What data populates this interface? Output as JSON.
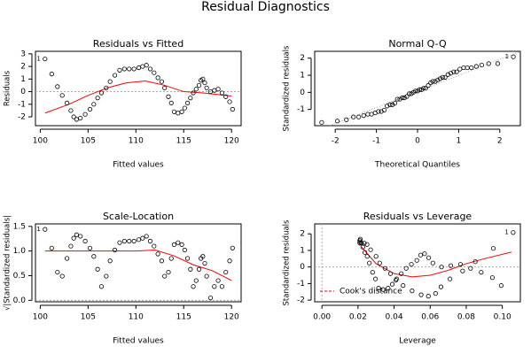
{
  "title": "Residual Diagnostics",
  "chart_data": [
    {
      "type": "scatter",
      "title": "Residuals vs Fitted",
      "xlabel": "Fitted values",
      "ylabel": "Residuals",
      "xlim": [
        99.5,
        121
      ],
      "ylim": [
        -2.7,
        3.2
      ],
      "xticks": [
        100,
        105,
        110,
        115,
        120
      ],
      "yticks": [
        -2,
        -1,
        0,
        1,
        2,
        3
      ],
      "points": {
        "color": "#000000",
        "x": [
          100.5,
          101.2,
          101.8,
          102.3,
          102.8,
          103.2,
          103.5,
          103.8,
          104.2,
          104.7,
          105.2,
          105.6,
          106.0,
          106.4,
          106.9,
          107.3,
          107.8,
          108.3,
          108.8,
          109.3,
          109.8,
          110.3,
          110.7,
          111.1,
          111.5,
          111.9,
          112.3,
          112.7,
          113.0,
          113.4,
          113.7,
          114.0,
          114.4,
          114.8,
          115.1,
          115.4,
          115.7,
          116.0,
          116.3,
          116.6,
          116.8,
          117.0,
          117.2,
          117.4,
          117.8,
          118.2,
          118.6,
          119.0,
          119.4,
          119.8,
          120.1
        ],
        "y": [
          2.6,
          1.4,
          0.4,
          -0.3,
          -0.9,
          -1.5,
          -2.0,
          -2.2,
          -2.1,
          -1.8,
          -1.4,
          -1.0,
          -0.5,
          -0.1,
          0.3,
          0.8,
          1.3,
          1.7,
          1.8,
          1.8,
          1.8,
          1.9,
          2.0,
          2.1,
          1.8,
          1.5,
          1.1,
          0.8,
          0.3,
          -0.4,
          -0.9,
          -1.6,
          -1.7,
          -1.6,
          -1.3,
          -0.9,
          -0.5,
          -0.1,
          0.2,
          0.5,
          0.9,
          1.0,
          0.7,
          0.3,
          0.0,
          0.1,
          0.2,
          -0.1,
          -0.4,
          -0.8,
          -1.4
        ]
      },
      "point_labels": [
        {
          "index": 0,
          "label": "1"
        }
      ],
      "smooth": {
        "color": "#ff0000",
        "x": [
          100.5,
          103,
          105,
          107,
          109,
          111,
          113,
          115,
          117,
          120
        ],
        "y": [
          -1.7,
          -1.0,
          -0.3,
          0.3,
          0.7,
          0.85,
          0.5,
          0.0,
          -0.1,
          -0.35
        ]
      }
    },
    {
      "type": "scatter",
      "title": "Normal Q-Q",
      "xlabel": "Theoretical Quantiles",
      "ylabel": "Standardized residuals",
      "xlim": [
        -2.5,
        2.5
      ],
      "ylim": [
        -1.95,
        2.4
      ],
      "xticks": [
        -2,
        -1,
        0,
        1,
        2
      ],
      "yticks": [
        -1,
        0,
        1,
        2
      ],
      "points": {
        "color": "#000000",
        "x": [
          -2.33,
          -1.95,
          -1.73,
          -1.56,
          -1.43,
          -1.31,
          -1.21,
          -1.12,
          -1.03,
          -0.95,
          -0.88,
          -0.81,
          -0.74,
          -0.67,
          -0.61,
          -0.55,
          -0.49,
          -0.43,
          -0.37,
          -0.32,
          -0.26,
          -0.2,
          -0.15,
          -0.1,
          -0.05,
          0,
          0.05,
          0.1,
          0.15,
          0.2,
          0.26,
          0.32,
          0.37,
          0.43,
          0.49,
          0.55,
          0.61,
          0.67,
          0.74,
          0.81,
          0.88,
          0.95,
          1.03,
          1.12,
          1.21,
          1.31,
          1.43,
          1.56,
          1.73,
          1.95,
          2.33
        ],
        "y": [
          -1.76,
          -1.68,
          -1.6,
          -1.44,
          -1.44,
          -1.36,
          -1.28,
          -1.28,
          -1.2,
          -1.12,
          -1.12,
          -1.04,
          -0.8,
          -0.72,
          -0.72,
          -0.64,
          -0.4,
          -0.4,
          -0.32,
          -0.32,
          -0.24,
          -0.08,
          -0.08,
          0,
          0.08,
          0.08,
          0.16,
          0.16,
          0.24,
          0.24,
          0.4,
          0.56,
          0.64,
          0.64,
          0.72,
          0.8,
          0.88,
          0.88,
          1.04,
          1.12,
          1.2,
          1.2,
          1.36,
          1.44,
          1.44,
          1.44,
          1.52,
          1.6,
          1.68,
          1.68,
          2.08
        ]
      },
      "point_labels": [
        {
          "index": 50,
          "label": "1"
        }
      ],
      "reference_line": {
        "color": "#999999",
        "x": [
          -2.5,
          2.5
        ],
        "y": [
          -2.3,
          2.4
        ]
      }
    },
    {
      "type": "scatter",
      "title": "Scale-Location",
      "xlabel": "Fitted values",
      "ylabel": "√|Standardized residuals|",
      "xlim": [
        99.5,
        121
      ],
      "ylim": [
        -0.03,
        1.55
      ],
      "xticks": [
        100,
        105,
        110,
        115,
        120
      ],
      "yticks": [
        {
          "value": 0,
          "label": "0.0"
        },
        {
          "value": 0.5,
          "label": "0.5"
        },
        {
          "value": 1,
          "label": "1.0"
        },
        {
          "value": 1.5,
          "label": "1.5"
        }
      ],
      "points": {
        "color": "#000000",
        "x": [
          100.5,
          101.2,
          101.8,
          102.3,
          102.8,
          103.2,
          103.5,
          103.8,
          104.2,
          104.7,
          105.2,
          105.6,
          106.0,
          106.4,
          106.9,
          107.3,
          107.8,
          108.3,
          108.8,
          109.3,
          109.8,
          110.3,
          110.7,
          111.1,
          111.5,
          111.9,
          112.3,
          112.7,
          113.0,
          113.4,
          113.7,
          114.0,
          114.4,
          114.8,
          115.1,
          115.4,
          115.7,
          116.0,
          116.3,
          116.6,
          116.8,
          117.0,
          117.2,
          117.4,
          117.8,
          118.2,
          118.6,
          119.0,
          119.4,
          119.8,
          120.1
        ],
        "y": [
          1.44,
          1.06,
          0.57,
          0.49,
          0.85,
          1.1,
          1.26,
          1.33,
          1.3,
          1.2,
          1.06,
          0.89,
          0.63,
          0.28,
          0.49,
          0.8,
          1.02,
          1.17,
          1.2,
          1.2,
          1.2,
          1.23,
          1.26,
          1.3,
          1.2,
          1.1,
          0.94,
          0.8,
          0.49,
          0.57,
          0.85,
          1.13,
          1.17,
          1.13,
          1.02,
          0.85,
          0.63,
          0.28,
          0.4,
          0.63,
          0.85,
          0.89,
          0.75,
          0.49,
          0.05,
          0.28,
          0.4,
          0.28,
          0.57,
          0.8,
          1.06
        ]
      },
      "point_labels": [
        {
          "index": 0,
          "label": "1"
        }
      ],
      "smooth": {
        "color": "#ff0000",
        "x": [
          100.5,
          105,
          110,
          112,
          114,
          116,
          118,
          120
        ],
        "y": [
          1.0,
          1.0,
          1.0,
          1.02,
          0.9,
          0.72,
          0.6,
          0.4
        ]
      }
    },
    {
      "type": "scatter",
      "title": "Residuals vs Leverage",
      "xlabel": "Leverage",
      "ylabel": "Standardized residuals",
      "xlim": [
        -0.004,
        0.11
      ],
      "ylim": [
        -2.1,
        2.6
      ],
      "xticks": [
        {
          "value": 0,
          "label": "0.00"
        },
        {
          "value": 0.02,
          "label": "0.02"
        },
        {
          "value": 0.04,
          "label": "0.04"
        },
        {
          "value": 0.06,
          "label": "0.06"
        },
        {
          "value": 0.08,
          "label": "0.08"
        },
        {
          "value": 0.1,
          "label": "0.10"
        }
      ],
      "yticks": [
        -2,
        -1,
        0,
        1,
        2
      ],
      "points": {
        "color": "#000000",
        "x": [
          0.106,
          0.095,
          0.085,
          0.078,
          0.071,
          0.066,
          0.063,
          0.059,
          0.055,
          0.05,
          0.045,
          0.041,
          0.038,
          0.035,
          0.032,
          0.03,
          0.027,
          0.025,
          0.0235,
          0.022,
          0.021,
          0.021,
          0.021,
          0.0213,
          0.0219,
          0.0227,
          0.0238,
          0.0251,
          0.0263,
          0.0281,
          0.0297,
          0.0314,
          0.034,
          0.0367,
          0.039,
          0.0414,
          0.044,
          0.0467,
          0.0496,
          0.0526,
          0.0547,
          0.0569,
          0.0592,
          0.0615,
          0.0663,
          0.0714,
          0.0768,
          0.0824,
          0.0883,
          0.0945,
          0.0994
        ],
        "y": [
          2.08,
          1.12,
          0.32,
          -0.24,
          -0.72,
          -1.2,
          -1.6,
          -1.76,
          -1.68,
          -1.44,
          -1.12,
          -0.8,
          -0.4,
          -0.08,
          0.24,
          0.64,
          1.04,
          1.36,
          1.44,
          1.44,
          1.44,
          1.52,
          1.6,
          1.68,
          1.44,
          1.2,
          0.88,
          0.64,
          0.24,
          -0.32,
          -0.72,
          -1.28,
          -1.36,
          -1.28,
          -1.04,
          -0.72,
          -0.4,
          -0.08,
          0.16,
          0.4,
          0.72,
          0.8,
          0.56,
          0.24,
          0,
          0.08,
          0.16,
          -0.08,
          -0.32,
          -0.64,
          -1.12
        ]
      },
      "point_labels": [
        {
          "index": 0,
          "label": "1"
        }
      ],
      "smooth": {
        "color": "#ff0000",
        "x": [
          0.022,
          0.03,
          0.04,
          0.05,
          0.06,
          0.07,
          0.08,
          0.09,
          0.105
        ],
        "y": [
          1.2,
          0.2,
          -0.4,
          -0.6,
          -0.5,
          -0.2,
          0.2,
          0.5,
          0.9
        ]
      },
      "legend": {
        "position": "bottom-left",
        "label": "Cook's distance",
        "color": "#ff0000"
      }
    }
  ]
}
